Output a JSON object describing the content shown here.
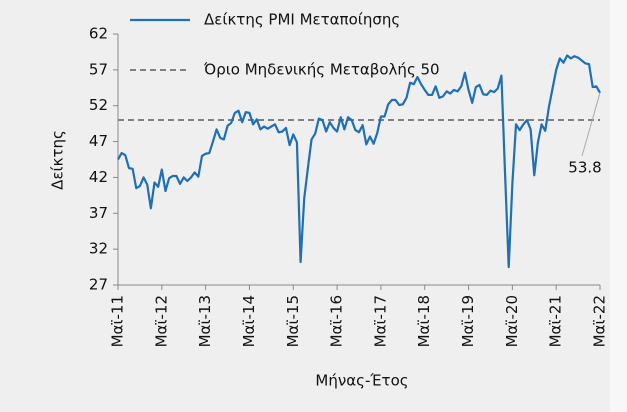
{
  "chart_data": {
    "type": "line",
    "y_label": "Δείκτης",
    "x_label": "Μήνας-Έτος",
    "categories": [
      "Μαϊ-11",
      null,
      null,
      null,
      null,
      null,
      null,
      null,
      null,
      null,
      null,
      null,
      "Μαϊ-12",
      null,
      null,
      null,
      null,
      null,
      null,
      null,
      null,
      null,
      null,
      null,
      "Μαϊ-13",
      null,
      null,
      null,
      null,
      null,
      null,
      null,
      null,
      null,
      null,
      null,
      "Μαϊ-14",
      null,
      null,
      null,
      null,
      null,
      null,
      null,
      null,
      null,
      null,
      null,
      "Μαϊ-15",
      null,
      null,
      null,
      null,
      null,
      null,
      null,
      null,
      null,
      null,
      null,
      "Μαϊ-16",
      null,
      null,
      null,
      null,
      null,
      null,
      null,
      null,
      null,
      null,
      null,
      "Μαϊ-17",
      null,
      null,
      null,
      null,
      null,
      null,
      null,
      null,
      null,
      null,
      null,
      "Μαϊ-18",
      null,
      null,
      null,
      null,
      null,
      null,
      null,
      null,
      null,
      null,
      null,
      "Μαϊ-19",
      null,
      null,
      null,
      null,
      null,
      null,
      null,
      null,
      null,
      null,
      null,
      "Μαϊ-20",
      null,
      null,
      null,
      null,
      null,
      null,
      null,
      null,
      null,
      null,
      null,
      "Μαϊ-21",
      null,
      null,
      null,
      null,
      null,
      null,
      null,
      null,
      null,
      null,
      null,
      "Μαϊ-22"
    ],
    "series": [
      {
        "name": "Δείκτης PMI Μεταποίησης",
        "color": "#1f6fb4",
        "values": [
          44.5,
          45.4,
          45.1,
          43.3,
          43.2,
          40.5,
          40.8,
          42.0,
          41.0,
          37.7,
          41.3,
          40.7,
          43.1,
          40.1,
          41.9,
          42.2,
          42.2,
          41.1,
          42.0,
          41.5,
          42.0,
          42.7,
          42.1,
          45.0,
          45.3,
          45.4,
          47.0,
          48.7,
          47.5,
          47.3,
          49.2,
          49.6,
          51.0,
          51.3,
          49.7,
          51.1,
          51.0,
          49.4,
          50.1,
          48.7,
          49.1,
          48.8,
          49.1,
          49.4,
          48.3,
          48.4,
          48.9,
          46.5,
          48.0,
          46.9,
          30.2,
          39.1,
          43.3,
          47.3,
          48.1,
          50.2,
          50.0,
          48.4,
          49.7,
          48.9,
          48.4,
          50.4,
          48.7,
          50.4,
          50.0,
          48.6,
          48.3,
          49.3,
          46.6,
          47.7,
          46.7,
          48.2,
          50.5,
          50.5,
          52.2,
          52.8,
          52.8,
          52.1,
          52.2,
          53.1,
          55.2,
          55.0,
          56.0,
          55.0,
          54.2,
          53.5,
          53.5,
          54.7,
          53.1,
          53.3,
          54.0,
          53.7,
          54.2,
          54.0,
          54.7,
          56.6,
          54.2,
          52.4,
          54.6,
          54.9,
          53.6,
          53.5,
          54.1,
          53.9,
          54.4,
          56.2,
          42.5,
          29.5,
          41.1,
          49.4,
          48.6,
          49.4,
          50.0,
          48.7,
          42.3,
          46.9,
          49.4,
          48.5,
          51.8,
          54.4,
          57.0,
          58.6,
          58.0,
          59.0,
          58.6,
          58.9,
          58.7,
          58.3,
          57.9,
          57.8,
          54.6,
          54.7,
          53.8
        ]
      }
    ],
    "reference_line": {
      "name": "Όριο Μηδενικής Μεταβολής 50",
      "value": 50,
      "color": "#7f7f7f"
    },
    "annotation": "53.8",
    "ylim": [
      27,
      62
    ],
    "yticks": [
      27,
      32,
      37,
      42,
      47,
      52,
      57,
      62
    ]
  }
}
